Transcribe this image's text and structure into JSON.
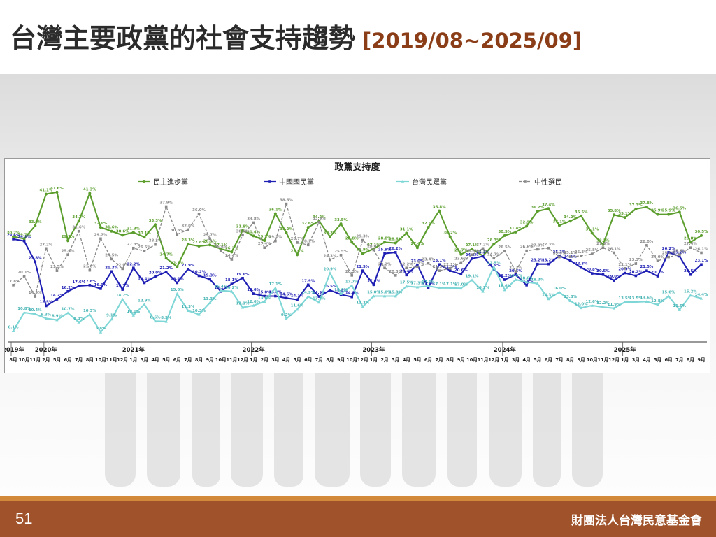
{
  "slide": {
    "title": "台灣主要政黨的社會支持趨勢",
    "date_range": "[2019/08~2025/09]",
    "page_number": "51",
    "organization": "財團法人台灣民意基金會"
  },
  "colors": {
    "dpp": "#5b9e2d",
    "kmt": "#1f1fb4",
    "tpp": "#7fd6d6",
    "neutral": "#8a8a8a",
    "footer": "#a0532a",
    "footer_strip": "#d28a3a",
    "range_text": "#8b3d17"
  },
  "chart_data": {
    "type": "line",
    "title": "政黨支持度",
    "xlabel": "",
    "ylabel": "",
    "ylim": [
      4,
      43
    ],
    "grid": false,
    "legend_position": "top",
    "x": [
      "2019-08",
      "2019-10",
      "2019-11",
      "2020-02",
      "2020-05",
      "2020-06",
      "2020-07",
      "2020-08",
      "2020-10",
      "2020-11",
      "2020-12",
      "2021-01",
      "2021-03",
      "2021-04",
      "2021-05",
      "2021-06",
      "2021-07",
      "2021-08",
      "2021-09",
      "2021-10",
      "2021-11",
      "2021-12",
      "2022-01",
      "2022-02",
      "2022-03",
      "2022-04",
      "2022-05",
      "2022-06",
      "2022-07",
      "2022-08",
      "2022-09",
      "2022-10",
      "2022-12",
      "2023-01",
      "2023-02",
      "2023-03",
      "2023-04",
      "2023-05",
      "2023-06",
      "2023-07",
      "2023-08",
      "2023-09",
      "2023-10",
      "2023-11",
      "2023-12",
      "2024-01",
      "2024-03",
      "2024-04",
      "2024-05",
      "2024-06",
      "2024-07",
      "2024-08",
      "2024-09",
      "2024-10",
      "2024-11",
      "2024-12",
      "2025-01",
      "2025-03",
      "2025-04",
      "2025-05",
      "2025-06",
      "2025-07",
      "2025-08",
      "2025-09"
    ],
    "year_labels": [
      {
        "label": "2019年",
        "index": 0
      },
      {
        "label": "2020年",
        "index": 3
      },
      {
        "label": "2021年",
        "index": 11
      },
      {
        "label": "2022年",
        "index": 22
      },
      {
        "label": "2023年",
        "index": 33
      },
      {
        "label": "2024年",
        "index": 45
      },
      {
        "label": "2025年",
        "index": 56
      }
    ],
    "month_labels": [
      "8月",
      "10月",
      "11月",
      "2月",
      "5月",
      "6月",
      "7月",
      "8月",
      "10月",
      "11月",
      "12月",
      "1月",
      "3月",
      "4月",
      "5月",
      "6月",
      "7月",
      "8月",
      "9月",
      "10月",
      "11月",
      "12月",
      "1月",
      "2月",
      "3月",
      "4月",
      "5月",
      "6月",
      "7月",
      "8月",
      "9月",
      "10月",
      "12月",
      "1月",
      "2月",
      "3月",
      "4月",
      "5月",
      "6月",
      "7月",
      "8月",
      "9月",
      "10月",
      "11月",
      "12月",
      "1月",
      "3月",
      "4月",
      "5月",
      "6月",
      "7月",
      "8月",
      "9月",
      "10月",
      "11月",
      "12月",
      "1月",
      "3月",
      "4月",
      "5月",
      "6月",
      "7月",
      "8月",
      "9月"
    ],
    "series": [
      {
        "name": "民主進步黨",
        "color_key": "dpp",
        "marker": "circle",
        "values": [
          30.2,
          29.7,
          33.0,
          41.1,
          41.6,
          29.2,
          34.2,
          41.3,
          32.6,
          31.6,
          30.6,
          31.3,
          30.1,
          33.3,
          24.7,
          22.5,
          28.3,
          27.8,
          28.1,
          27.1,
          26.3,
          31.8,
          30.4,
          29.2,
          36.1,
          31.2,
          25.6,
          32.6,
          34.2,
          30.2,
          33.5,
          28.8,
          25.9,
          27.1,
          28.8,
          28.6,
          31.1,
          27.4,
          32.6,
          36.8,
          30.2,
          25.7,
          27.1,
          25.3,
          28.3,
          30.5,
          31.4,
          32.9,
          36.7,
          37.4,
          33.1,
          34.2,
          35.5,
          31.1,
          28.2,
          35.8,
          35.1,
          37.3,
          37.8,
          35.9,
          35.9,
          36.5,
          28.8,
          30.5
        ]
      },
      {
        "name": "中國國民黨",
        "color_key": "kmt",
        "marker": "square",
        "values": [
          29.6,
          29.1,
          23.8,
          12.5,
          14.2,
          16.2,
          17.6,
          17.8,
          16.9,
          21.3,
          16.7,
          22.2,
          18.4,
          20.0,
          21.2,
          18.4,
          21.9,
          20.2,
          19.3,
          16.2,
          18.1,
          19.6,
          15.6,
          15.0,
          15.0,
          14.5,
          14.1,
          17.9,
          14.9,
          16.5,
          15.4,
          14.8,
          21.5,
          17.9,
          25.9,
          26.2,
          20.4,
          23.0,
          17.1,
          23.1,
          21.5,
          20.6,
          24.6,
          25.2,
          21.9,
          19.2,
          20.5,
          17.8,
          23.2,
          23.2,
          25.3,
          24.1,
          22.3,
          20.8,
          20.5,
          19.0,
          20.9,
          20.2,
          21.5,
          20.1,
          26.2,
          25.2,
          20.5,
          23.1
        ]
      },
      {
        "name": "台灣民眾黨",
        "color_key": "tpp",
        "marker": "triangle",
        "values": [
          6.1,
          10.8,
          10.4,
          9.3,
          8.9,
          10.7,
          8.3,
          10.3,
          5.8,
          9.1,
          14.2,
          10.1,
          12.9,
          8.6,
          8.5,
          15.6,
          11.3,
          10.3,
          13.3,
          16.4,
          16.2,
          12.1,
          12.6,
          13.6,
          17.1,
          9.2,
          11.6,
          14.9,
          13.4,
          20.9,
          15.6,
          17.7,
          12.3,
          15.0,
          15.0,
          15.0,
          17.5,
          17.3,
          17.6,
          17.1,
          17.1,
          17.0,
          19.1,
          16.2,
          22.5,
          16.6,
          19.2,
          18.6,
          18.2,
          14.3,
          16.0,
          13.8,
          12.0,
          12.6,
          12.2,
          11.9,
          13.5,
          13.5,
          13.6,
          12.8,
          15.0,
          11.5,
          15.2,
          14.4
        ]
      },
      {
        "name": "中性選民",
        "color_key": "neutral",
        "marker": "square",
        "dashed": true,
        "values": [
          17.8,
          20.1,
          14.9,
          27.2,
          21.5,
          25.6,
          31.6,
          21.6,
          29.7,
          24.5,
          22.0,
          27.3,
          26.5,
          28.2,
          37.9,
          30.8,
          32.0,
          36.0,
          29.7,
          26.6,
          24.4,
          30.6,
          33.8,
          27.4,
          29.1,
          38.6,
          28.7,
          28.1,
          33.9,
          24.3,
          25.5,
          20.3,
          29.3,
          26.8,
          22.2,
          20.3,
          22.2,
          22.5,
          23.4,
          21.5,
          22.1,
          23.6,
          25.6,
          27.2,
          24.7,
          26.5,
          21.3,
          26.6,
          27.0,
          27.3,
          25.0,
          25.1,
          25.3,
          25.8,
          27.4,
          26.1,
          22.1,
          23.3,
          28.0,
          24.0,
          25.0,
          25.6,
          27.4,
          26.1
        ]
      }
    ]
  }
}
